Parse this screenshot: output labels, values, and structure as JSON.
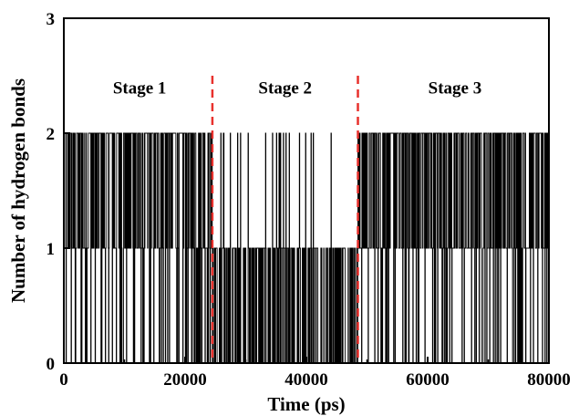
{
  "chart_data": {
    "type": "line",
    "title": "",
    "xlabel": "Time (ps)",
    "ylabel": "Number of hydrogen bonds",
    "xlim": [
      0,
      80000
    ],
    "ylim": [
      0,
      3
    ],
    "x_ticks": [
      0,
      20000,
      40000,
      60000,
      80000
    ],
    "y_ticks": [
      0,
      1,
      2,
      3
    ],
    "x_tick_labels": [
      "0",
      "20000",
      "40000",
      "60000",
      "80000"
    ],
    "y_tick_labels": [
      "0",
      "1",
      "2",
      "3"
    ],
    "grid": false,
    "legend": "none",
    "colors": {
      "series": "#000000",
      "divider": "#e8312d"
    },
    "stage_boundaries": [
      24500,
      48500
    ],
    "annotations": [
      {
        "text": "Stage 1",
        "x": 12500,
        "y": 2.4
      },
      {
        "text": "Stage 2",
        "x": 36500,
        "y": 2.4
      },
      {
        "text": "Stage 3",
        "x": 64500,
        "y": 2.4
      }
    ],
    "series": [
      {
        "segments": [
          {
            "from": 0,
            "to": 24500,
            "levels": [
              0,
              1,
              2
            ],
            "approx_fraction": {
              "0": 0.18,
              "1": 0.27,
              "2": 0.55
            }
          },
          {
            "from": 24500,
            "to": 48500,
            "levels": [
              0,
              1,
              2
            ],
            "approx_fraction": {
              "0": 0.55,
              "1": 0.38,
              "2": 0.07
            }
          },
          {
            "from": 48500,
            "to": 80000,
            "levels": [
              0,
              1,
              2
            ],
            "approx_fraction": {
              "0": 0.12,
              "1": 0.38,
              "2": 0.5
            }
          }
        ]
      }
    ]
  }
}
